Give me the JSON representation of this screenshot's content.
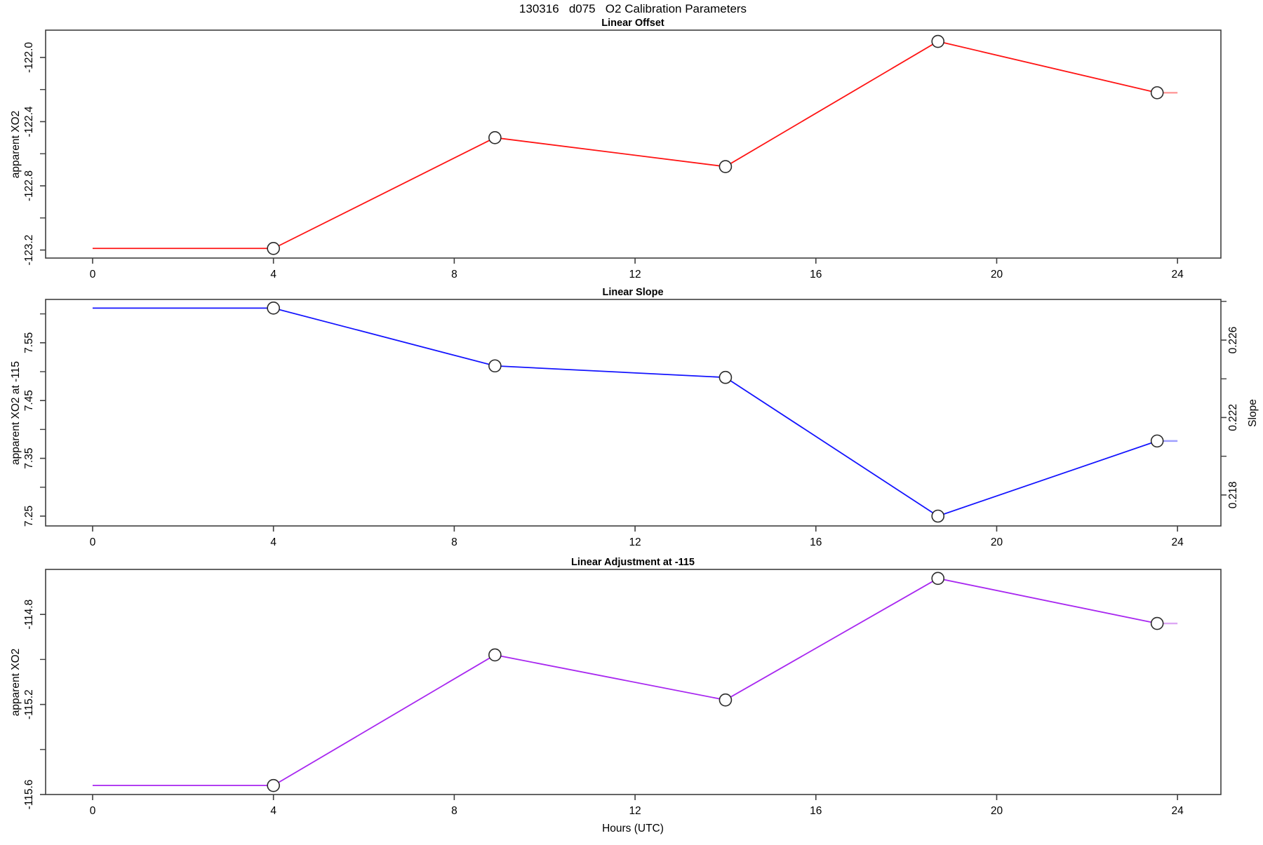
{
  "title": "130316   d075   O2 Calibration Parameters",
  "xlabel": "Hours (UTC)",
  "frame_color": "#3f3f3f",
  "marker": {
    "shape": "open-circle",
    "stroke": "#2b2b2b"
  },
  "chart_data": [
    {
      "type": "line",
      "title": "Linear Offset",
      "ylabel": "apparent XO2",
      "line_color": "#ff1414",
      "tail_color": "#ff9e9e",
      "xlim": [
        -1.04,
        24.96
      ],
      "ylim": [
        -123.25,
        -121.83
      ],
      "xticks": [
        0,
        4,
        8,
        12,
        16,
        20,
        24
      ],
      "yticks_major": [
        {
          "v": -122.0,
          "label": "-122.0"
        },
        {
          "v": -122.4,
          "label": "-122.4"
        },
        {
          "v": -122.8,
          "label": "-122.8"
        },
        {
          "v": -123.2,
          "label": "-123.2"
        }
      ],
      "yticks_minor": [
        -122.2,
        -122.6,
        -123.0
      ],
      "points": [
        {
          "x": 0,
          "y": -123.19,
          "marker": false
        },
        {
          "x": 4,
          "y": -123.19,
          "marker": true
        },
        {
          "x": 8.9,
          "y": -122.5,
          "marker": true
        },
        {
          "x": 14,
          "y": -122.68,
          "marker": true
        },
        {
          "x": 18.7,
          "y": -121.9,
          "marker": true
        },
        {
          "x": 23.55,
          "y": -122.22,
          "marker": true
        },
        {
          "x": 24,
          "y": -122.22,
          "marker": false
        }
      ]
    },
    {
      "type": "line",
      "title": "Linear Slope",
      "ylabel": "apparent XO2 at -115",
      "y2label": "Slope",
      "line_color": "#1414ff",
      "tail_color": "#9e9eff",
      "xlim": [
        -1.04,
        24.96
      ],
      "ylim": [
        7.233,
        7.625
      ],
      "xticks": [
        0,
        4,
        8,
        12,
        16,
        20,
        24
      ],
      "yticks_major": [
        {
          "v": 7.55,
          "label": "7.55"
        },
        {
          "v": 7.45,
          "label": "7.45"
        },
        {
          "v": 7.35,
          "label": "7.35"
        },
        {
          "v": 7.25,
          "label": "7.25"
        }
      ],
      "yticks_minor": [
        7.6,
        7.5,
        7.4,
        7.3
      ],
      "y2lim": [
        0.2164,
        0.2281
      ],
      "y2ticks_major": [
        {
          "v": 0.226,
          "label": "0.226"
        },
        {
          "v": 0.222,
          "label": "0.222"
        },
        {
          "v": 0.218,
          "label": "0.218"
        }
      ],
      "y2ticks_minor": [
        0.228,
        0.224,
        0.22
      ],
      "points": [
        {
          "x": 0,
          "y": 7.61,
          "marker": false
        },
        {
          "x": 4,
          "y": 7.61,
          "marker": true
        },
        {
          "x": 8.9,
          "y": 7.51,
          "marker": true
        },
        {
          "x": 14,
          "y": 7.49,
          "marker": true
        },
        {
          "x": 18.7,
          "y": 7.25,
          "marker": true
        },
        {
          "x": 23.55,
          "y": 7.38,
          "marker": true
        },
        {
          "x": 24,
          "y": 7.38,
          "marker": false
        }
      ]
    },
    {
      "type": "line",
      "title": "Linear Adjustment at -115",
      "ylabel": "apparent XO2",
      "line_color": "#a827f0",
      "tail_color": "#dda7f5",
      "xlim": [
        -1.04,
        24.96
      ],
      "ylim": [
        -115.6,
        -114.6
      ],
      "xticks": [
        0,
        4,
        8,
        12,
        16,
        20,
        24
      ],
      "yticks_major": [
        {
          "v": -114.8,
          "label": "-114.8"
        },
        {
          "v": -115.2,
          "label": "-115.2"
        },
        {
          "v": -115.6,
          "label": "-115.6"
        }
      ],
      "yticks_minor": [
        -115.0,
        -115.4
      ],
      "points": [
        {
          "x": 0,
          "y": -115.56,
          "marker": false
        },
        {
          "x": 4,
          "y": -115.56,
          "marker": true
        },
        {
          "x": 8.9,
          "y": -114.98,
          "marker": true
        },
        {
          "x": 14,
          "y": -115.18,
          "marker": true
        },
        {
          "x": 18.7,
          "y": -114.64,
          "marker": true
        },
        {
          "x": 23.55,
          "y": -114.84,
          "marker": true
        },
        {
          "x": 24,
          "y": -114.84,
          "marker": false
        }
      ]
    }
  ]
}
